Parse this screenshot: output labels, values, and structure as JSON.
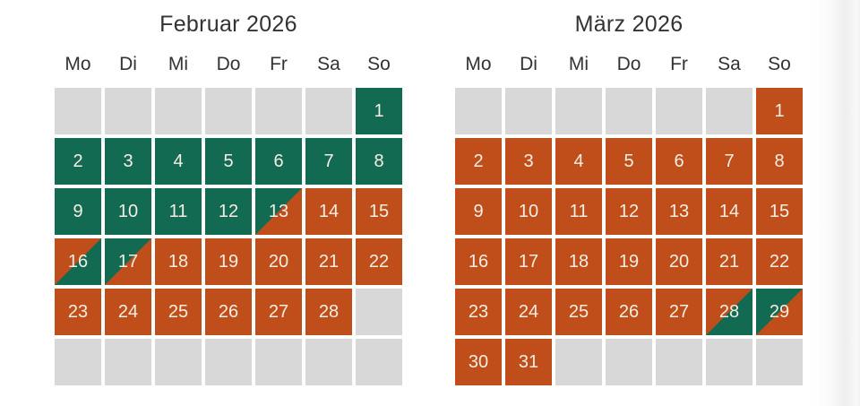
{
  "colors": {
    "available": "#116a51",
    "booked": "#c04e1b",
    "empty": "#d8d8d8",
    "day_text": "#f5efe3",
    "heading_text": "#333333"
  },
  "weekday_headers": [
    "Mo",
    "Di",
    "Mi",
    "Do",
    "Fr",
    "Sa",
    "So"
  ],
  "months": [
    {
      "title": "Februar 2026",
      "weeks": [
        [
          {
            "day": "",
            "state": "empty"
          },
          {
            "day": "",
            "state": "empty"
          },
          {
            "day": "",
            "state": "empty"
          },
          {
            "day": "",
            "state": "empty"
          },
          {
            "day": "",
            "state": "empty"
          },
          {
            "day": "",
            "state": "empty"
          },
          {
            "day": "1",
            "state": "available"
          }
        ],
        [
          {
            "day": "2",
            "state": "available"
          },
          {
            "day": "3",
            "state": "available"
          },
          {
            "day": "4",
            "state": "available"
          },
          {
            "day": "5",
            "state": "available"
          },
          {
            "day": "6",
            "state": "available"
          },
          {
            "day": "7",
            "state": "available"
          },
          {
            "day": "8",
            "state": "available"
          }
        ],
        [
          {
            "day": "9",
            "state": "available"
          },
          {
            "day": "10",
            "state": "available"
          },
          {
            "day": "11",
            "state": "available"
          },
          {
            "day": "12",
            "state": "available"
          },
          {
            "day": "13",
            "state": "arrival"
          },
          {
            "day": "14",
            "state": "booked"
          },
          {
            "day": "15",
            "state": "booked"
          }
        ],
        [
          {
            "day": "16",
            "state": "departure"
          },
          {
            "day": "17",
            "state": "arrival"
          },
          {
            "day": "18",
            "state": "booked"
          },
          {
            "day": "19",
            "state": "booked"
          },
          {
            "day": "20",
            "state": "booked"
          },
          {
            "day": "21",
            "state": "booked"
          },
          {
            "day": "22",
            "state": "booked"
          }
        ],
        [
          {
            "day": "23",
            "state": "booked"
          },
          {
            "day": "24",
            "state": "booked"
          },
          {
            "day": "25",
            "state": "booked"
          },
          {
            "day": "26",
            "state": "booked"
          },
          {
            "day": "27",
            "state": "booked"
          },
          {
            "day": "28",
            "state": "booked"
          },
          {
            "day": "",
            "state": "empty"
          }
        ],
        [
          {
            "day": "",
            "state": "empty"
          },
          {
            "day": "",
            "state": "empty"
          },
          {
            "day": "",
            "state": "empty"
          },
          {
            "day": "",
            "state": "empty"
          },
          {
            "day": "",
            "state": "empty"
          },
          {
            "day": "",
            "state": "empty"
          },
          {
            "day": "",
            "state": "empty"
          }
        ]
      ]
    },
    {
      "title": "März 2026",
      "weeks": [
        [
          {
            "day": "",
            "state": "empty"
          },
          {
            "day": "",
            "state": "empty"
          },
          {
            "day": "",
            "state": "empty"
          },
          {
            "day": "",
            "state": "empty"
          },
          {
            "day": "",
            "state": "empty"
          },
          {
            "day": "",
            "state": "empty"
          },
          {
            "day": "1",
            "state": "booked"
          }
        ],
        [
          {
            "day": "2",
            "state": "booked"
          },
          {
            "day": "3",
            "state": "booked"
          },
          {
            "day": "4",
            "state": "booked"
          },
          {
            "day": "5",
            "state": "booked"
          },
          {
            "day": "6",
            "state": "booked"
          },
          {
            "day": "7",
            "state": "booked"
          },
          {
            "day": "8",
            "state": "booked"
          }
        ],
        [
          {
            "day": "9",
            "state": "booked"
          },
          {
            "day": "10",
            "state": "booked"
          },
          {
            "day": "11",
            "state": "booked"
          },
          {
            "day": "12",
            "state": "booked"
          },
          {
            "day": "13",
            "state": "booked"
          },
          {
            "day": "14",
            "state": "booked"
          },
          {
            "day": "15",
            "state": "booked"
          }
        ],
        [
          {
            "day": "16",
            "state": "booked"
          },
          {
            "day": "17",
            "state": "booked"
          },
          {
            "day": "18",
            "state": "booked"
          },
          {
            "day": "19",
            "state": "booked"
          },
          {
            "day": "20",
            "state": "booked"
          },
          {
            "day": "21",
            "state": "booked"
          },
          {
            "day": "22",
            "state": "booked"
          }
        ],
        [
          {
            "day": "23",
            "state": "booked"
          },
          {
            "day": "24",
            "state": "booked"
          },
          {
            "day": "25",
            "state": "booked"
          },
          {
            "day": "26",
            "state": "booked"
          },
          {
            "day": "27",
            "state": "booked"
          },
          {
            "day": "28",
            "state": "departure"
          },
          {
            "day": "29",
            "state": "arrival"
          }
        ],
        [
          {
            "day": "30",
            "state": "booked"
          },
          {
            "day": "31",
            "state": "booked"
          },
          {
            "day": "",
            "state": "empty"
          },
          {
            "day": "",
            "state": "empty"
          },
          {
            "day": "",
            "state": "empty"
          },
          {
            "day": "",
            "state": "empty"
          },
          {
            "day": "",
            "state": "empty"
          }
        ]
      ]
    }
  ]
}
